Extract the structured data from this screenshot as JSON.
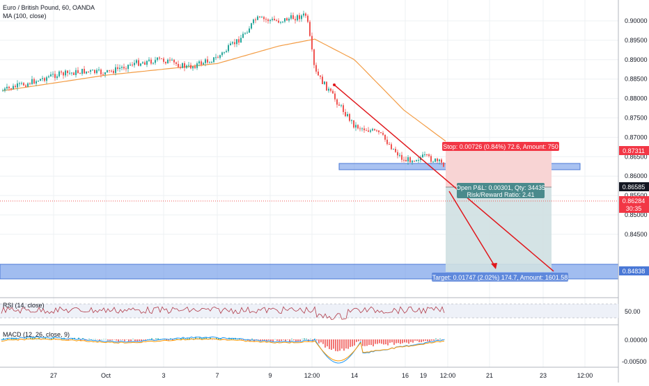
{
  "legend": {
    "symbol": "Euro / British Pound, 60, OANDA",
    "ma": "MA (100, close)"
  },
  "price_axis": {
    "ticks": [
      "0.90000",
      "0.89500",
      "0.89000",
      "0.88500",
      "0.88000",
      "0.87500",
      "0.87000",
      "0.86500",
      "0.86000",
      "0.85500",
      "0.85000",
      "0.84500"
    ]
  },
  "time_axis": {
    "ticks": [
      "27",
      "Oct",
      "3",
      "7",
      "9",
      "12:00",
      "14",
      "16",
      "19",
      "12:00",
      "21",
      "23",
      "12:00"
    ]
  },
  "badges": {
    "stop_price": "0.87311",
    "last_price": "0.86585",
    "current_price": "0.86284",
    "countdown": "30:35",
    "target_price": "0.84838"
  },
  "position": {
    "stop_label": "Stop: 0.00726 (0.84%) 72.6, Amount: 750",
    "pnl_label": "Open P&L: 0.00301, Qty: 34435",
    "rr_label": "Risk/Reward Ratio: 2.41",
    "target_label": "Target: 0.01747 (2.02%) 174.7, Amount: 1601.58"
  },
  "rsi": {
    "label": "RSI (14, close)",
    "ticks": [
      "50.00"
    ]
  },
  "macd": {
    "label": "MACD (12, 26, close, 9)",
    "ticks": [
      "0.00000",
      "-0.00500"
    ]
  },
  "colors": {
    "up": "#26a69a",
    "down": "#ef5350",
    "ma": "#f39c44",
    "trend": "#e0161b",
    "zone": "#6f9ae8",
    "stop_fill": "#f8d4d4",
    "target_fill": "#cfe0e2",
    "rsi": "#b03a48",
    "macd": "#2196f3",
    "signal": "#ff9800"
  },
  "chart_data": {
    "type": "candlestick",
    "instrument": "Euro / British Pound",
    "interval": "60",
    "source": "OANDA",
    "ylim": [
      0.8425,
      0.9215
    ],
    "indicators": [
      "MA (100, close)",
      "RSI (14, close)",
      "MACD (12, 26, close, 9)"
    ],
    "price_path": [
      {
        "x": "Sep 26",
        "y": 0.882
      },
      {
        "x": "Sep 27",
        "y": 0.886
      },
      {
        "x": "Sep 30",
        "y": 0.887
      },
      {
        "x": "Oct 1",
        "y": 0.8865
      },
      {
        "x": "Oct 2",
        "y": 0.889
      },
      {
        "x": "Oct 3",
        "y": 0.89
      },
      {
        "x": "Oct 4",
        "y": 0.888
      },
      {
        "x": "Oct 7",
        "y": 0.8905
      },
      {
        "x": "Oct 8",
        "y": 0.8955
      },
      {
        "x": "Oct 9",
        "y": 0.9005
      },
      {
        "x": "Oct 10",
        "y": 0.9
      },
      {
        "x": "Oct 11",
        "y": 0.9015
      },
      {
        "x": "Oct 11 12:00",
        "y": 0.887
      },
      {
        "x": "Oct 14",
        "y": 0.873
      },
      {
        "x": "Oct 15",
        "y": 0.871
      },
      {
        "x": "Oct 16",
        "y": 0.864
      },
      {
        "x": "Oct 17",
        "y": 0.865
      },
      {
        "x": "Oct 18",
        "y": 0.8628
      }
    ],
    "moving_average": [
      {
        "x": "Sep 26",
        "y": 0.882
      },
      {
        "x": "Oct 1",
        "y": 0.886
      },
      {
        "x": "Oct 7",
        "y": 0.889
      },
      {
        "x": "Oct 10",
        "y": 0.8935
      },
      {
        "x": "Oct 11 12:00",
        "y": 0.8953
      },
      {
        "x": "Oct 14",
        "y": 0.89
      },
      {
        "x": "Oct 16",
        "y": 0.877
      },
      {
        "x": "Oct 18",
        "y": 0.869
      }
    ],
    "support_zones": [
      {
        "from": 0.8695,
        "to": 0.8705
      },
      {
        "from": 0.8473,
        "to": 0.8495
      }
    ],
    "trendlines": [
      {
        "from": {
          "x": "Oct 11 12:00",
          "y": 0.8865
        },
        "to": {
          "x": "Oct 23 12:00",
          "y": 0.8483
        }
      },
      {
        "from": {
          "x": "Oct 18",
          "y": 0.865
        },
        "to": {
          "x": "Oct 21",
          "y": 0.849
        }
      }
    ],
    "short_position": {
      "entry": 0.86585,
      "stop": 0.87311,
      "target": 0.84838,
      "current": 0.86284
    }
  }
}
